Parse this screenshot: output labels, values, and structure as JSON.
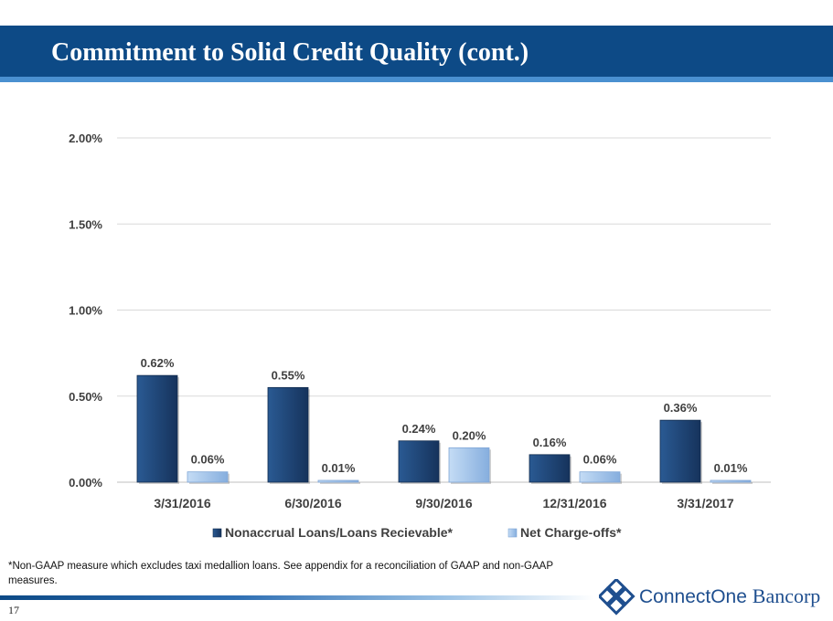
{
  "slide": {
    "title": "Commitment to Solid Credit Quality (cont.)",
    "footnote": "*Non-GAAP measure which excludes taxi medallion loans. See appendix for a reconciliation of GAAP and non-GAAP measures.",
    "page_number": "17"
  },
  "logo": {
    "brand_first": "ConnectOne",
    "brand_second": "Bancorp",
    "icon": "diamond-knot-icon"
  },
  "colors": {
    "title_band": "#0d4a86",
    "series_nonaccrual": "#1b3d6b",
    "series_chargeoffs": "#9dbfe8"
  },
  "chart_data": {
    "type": "bar",
    "categories": [
      "3/31/2016",
      "6/30/2016",
      "9/30/2016",
      "12/31/2016",
      "3/31/2017"
    ],
    "series": [
      {
        "name": "Nonaccrual Loans/Loans Recievable*",
        "values": [
          0.62,
          0.55,
          0.24,
          0.16,
          0.36
        ],
        "labels": [
          "0.62%",
          "0.55%",
          "0.24%",
          "0.16%",
          "0.36%"
        ]
      },
      {
        "name": "Net Charge-offs*",
        "values": [
          0.06,
          0.01,
          0.2,
          0.06,
          0.01
        ],
        "labels": [
          "0.06%",
          "0.01%",
          "0.20%",
          "0.06%",
          "0.01%"
        ]
      }
    ],
    "yticks": [
      "0.00%",
      "0.50%",
      "1.00%",
      "1.50%",
      "2.00%"
    ],
    "ylim": [
      0,
      2.0
    ],
    "grid": true,
    "legend_position": "bottom"
  }
}
